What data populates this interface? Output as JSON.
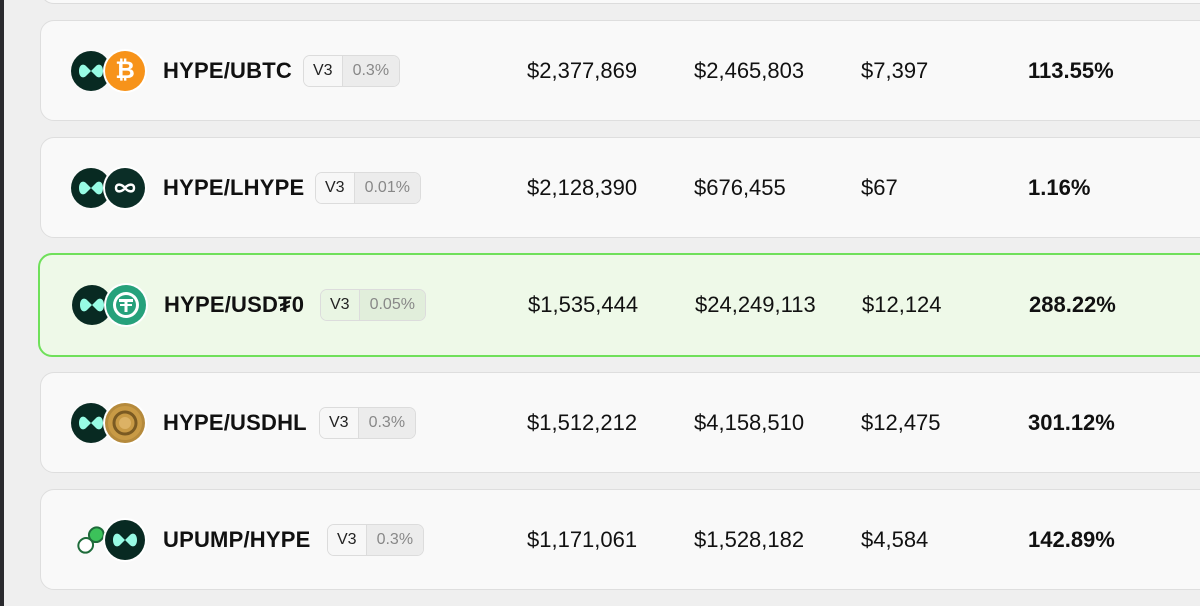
{
  "pools": [
    {
      "pair": "HYPE/UBTC",
      "version": "V3",
      "fee": "0.3%",
      "tvl": "$2,377,869",
      "volume": "$2,465,803",
      "fees": "$7,397",
      "apr": "113.55%",
      "token_a_icon": "hype-icon",
      "token_b_icon": "bitcoin-icon",
      "selected": false
    },
    {
      "pair": "HYPE/LHYPE",
      "version": "V3",
      "fee": "0.01%",
      "tvl": "$2,128,390",
      "volume": "$676,455",
      "fees": "$67",
      "apr": "1.16%",
      "token_a_icon": "hype-icon",
      "token_b_icon": "infinity-icon",
      "selected": false
    },
    {
      "pair": "HYPE/USD₮0",
      "version": "V3",
      "fee": "0.05%",
      "tvl": "$1,535,444",
      "volume": "$24,249,113",
      "fees": "$12,124",
      "apr": "288.22%",
      "token_a_icon": "hype-icon",
      "token_b_icon": "tether-icon",
      "selected": true
    },
    {
      "pair": "HYPE/USDHL",
      "version": "V3",
      "fee": "0.3%",
      "tvl": "$1,512,212",
      "volume": "$4,158,510",
      "fees": "$12,475",
      "apr": "301.12%",
      "token_a_icon": "hype-icon",
      "token_b_icon": "usdhl-coin-icon",
      "selected": false
    },
    {
      "pair": "UPUMP/HYPE",
      "version": "V3",
      "fee": "0.3%",
      "tvl": "$1,171,061",
      "volume": "$1,528,182",
      "fees": "$4,584",
      "apr": "142.89%",
      "token_a_icon": "pill-icon",
      "token_b_icon": "hype-icon",
      "selected": false
    }
  ],
  "colors": {
    "selected_border": "#6fe05a",
    "selected_bg": "#eef9e8",
    "hype_dark": "#082a22",
    "hype_mint": "#97fce4",
    "bitcoin": "#f7931a",
    "tether": "#26a17b"
  }
}
